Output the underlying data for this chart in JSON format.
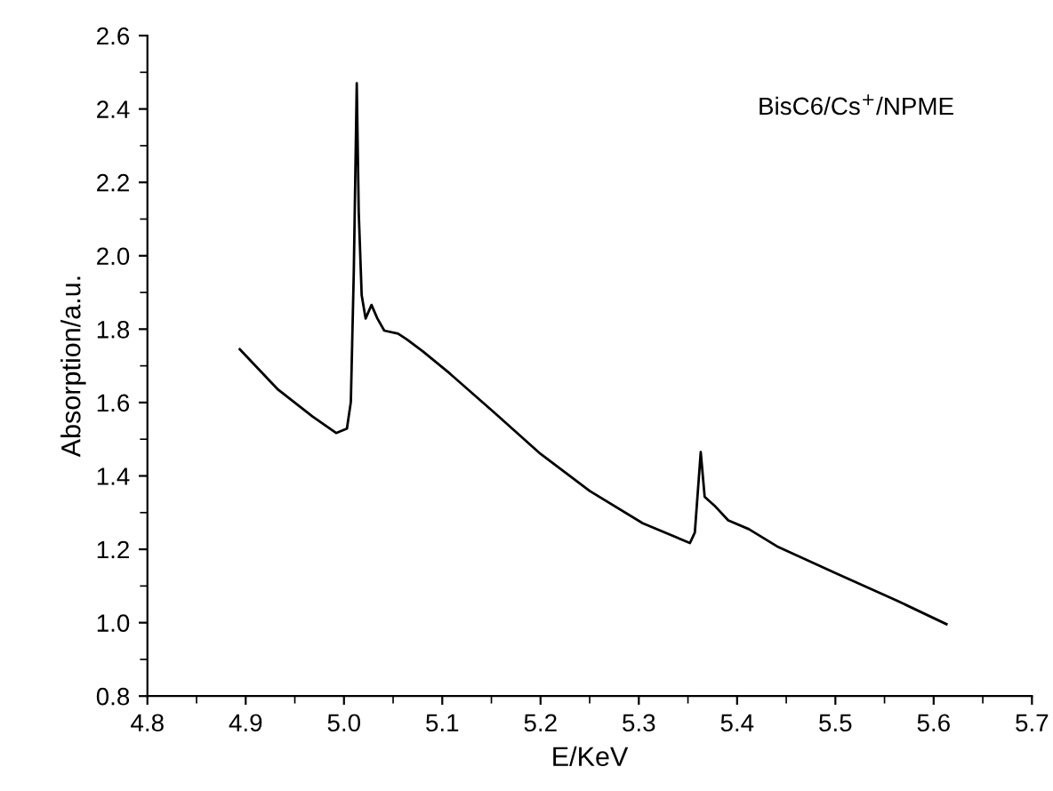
{
  "chart_data": {
    "type": "line",
    "xlabel": "E/KeV",
    "ylabel": "Absorption/a.u.",
    "annotations": [
      "BisC6/Cs$^{+}$/NPME"
    ],
    "series": [
      {
        "color": "#000000",
        "x": [
          4.894,
          4.933,
          4.968,
          4.992,
          5.003,
          5.007,
          5.01,
          5.013,
          5.015,
          5.018,
          5.022,
          5.028,
          5.034,
          5.041,
          5.055,
          5.064,
          5.08,
          5.106,
          5.154,
          5.2,
          5.25,
          5.304,
          5.352,
          5.357,
          5.363,
          5.367,
          5.377,
          5.391,
          5.412,
          5.442,
          5.502,
          5.562,
          5.613
        ],
        "values": [
          1.745,
          1.635,
          1.562,
          1.517,
          1.529,
          1.602,
          1.958,
          2.47,
          2.12,
          1.893,
          1.829,
          1.866,
          1.829,
          1.796,
          1.788,
          1.772,
          1.74,
          1.683,
          1.57,
          1.46,
          1.359,
          1.271,
          1.217,
          1.246,
          1.465,
          1.343,
          1.319,
          1.279,
          1.255,
          1.206,
          1.133,
          1.061,
          0.996
        ]
      }
    ],
    "xlim": [
      4.8,
      5.7
    ],
    "xticks": [
      4.8,
      4.9,
      {
        "value": 5.0,
        "label": "5.0"
      },
      5.1,
      5.2,
      5.3,
      5.4,
      5.5,
      5.6,
      5.7
    ],
    "ylim": [
      0.8,
      2.6
    ],
    "yticks": [
      0.8,
      {
        "value": 1.0,
        "label": "1.0"
      },
      1.2,
      1.4,
      1.6,
      1.8,
      {
        "value": 2.0,
        "label": "2.0"
      },
      2.2,
      2.4,
      2.6
    ],
    "grid": false,
    "legend": false,
    "marker": "none",
    "line_style": "solid"
  }
}
